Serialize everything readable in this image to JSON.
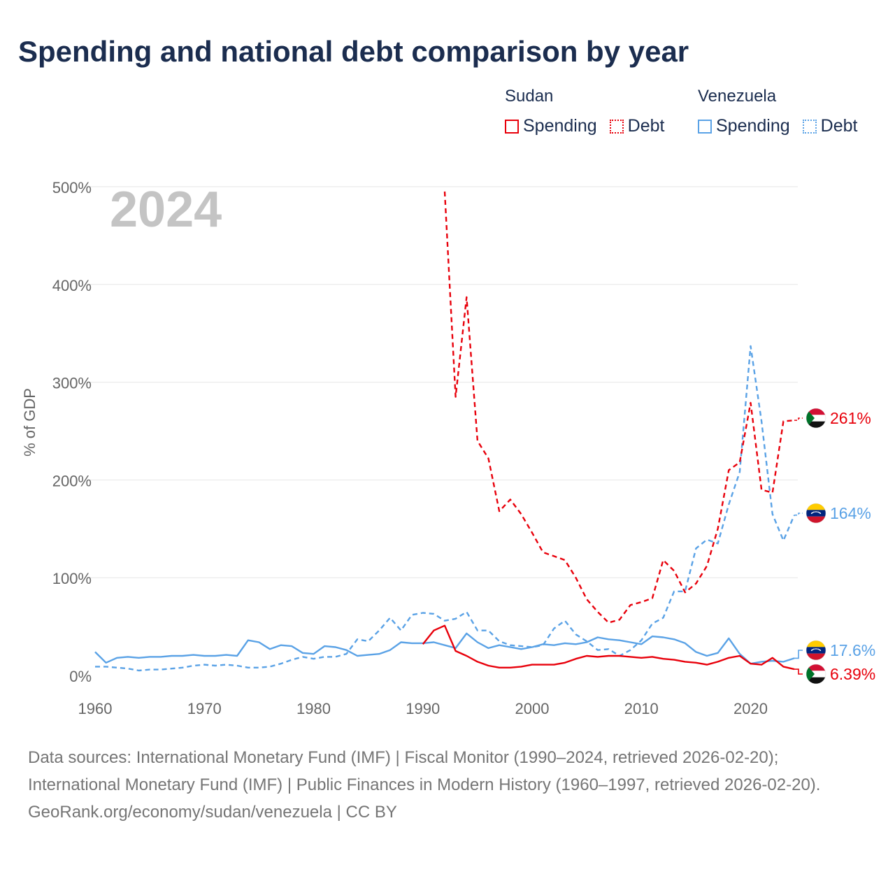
{
  "title": "Spending and national debt comparison by year",
  "legend": {
    "sudan": {
      "label": "Sudan",
      "spending_label": "Spending",
      "debt_label": "Debt",
      "color": "#e8000b"
    },
    "venezuela": {
      "label": "Venezuela",
      "spending_label": "Spending",
      "debt_label": "Debt",
      "color": "#5aa2e6"
    }
  },
  "year_label": "2024",
  "flags": {
    "sudan": "sudan-flag-icon",
    "venezuela": "venezuela-flag-icon"
  },
  "chart_data": {
    "type": "line",
    "title": "Spending and national debt comparison by year",
    "xlabel": "",
    "ylabel": "% of GDP",
    "xlim": [
      1960,
      2024
    ],
    "ylim": [
      0,
      500
    ],
    "x_ticks": [
      1960,
      1970,
      1980,
      1990,
      2000,
      2010,
      2020
    ],
    "y_ticks": [
      0,
      100,
      200,
      300,
      400,
      500
    ],
    "y_tick_labels": [
      "0%",
      "100%",
      "200%",
      "300%",
      "400%",
      "500%"
    ],
    "grid": true,
    "series": [
      {
        "name": "Venezuela Debt",
        "color": "#5aa2e6",
        "style": "dashed",
        "end_label": "164%",
        "points": [
          [
            1960,
            9
          ],
          [
            1961,
            9
          ],
          [
            1962,
            8
          ],
          [
            1963,
            7
          ],
          [
            1964,
            5
          ],
          [
            1965,
            6
          ],
          [
            1966,
            6
          ],
          [
            1967,
            7
          ],
          [
            1968,
            8
          ],
          [
            1969,
            10
          ],
          [
            1970,
            11
          ],
          [
            1971,
            10
          ],
          [
            1972,
            11
          ],
          [
            1973,
            10
          ],
          [
            1974,
            8
          ],
          [
            1975,
            8
          ],
          [
            1976,
            9
          ],
          [
            1977,
            12
          ],
          [
            1978,
            16
          ],
          [
            1979,
            19
          ],
          [
            1980,
            17
          ],
          [
            1981,
            19
          ],
          [
            1982,
            19
          ],
          [
            1983,
            22
          ],
          [
            1984,
            37
          ],
          [
            1985,
            35
          ],
          [
            1986,
            46
          ],
          [
            1987,
            59
          ],
          [
            1988,
            46
          ],
          [
            1989,
            62
          ],
          [
            1990,
            64
          ],
          [
            1991,
            63
          ],
          [
            1992,
            56
          ],
          [
            1993,
            58
          ],
          [
            1994,
            65
          ],
          [
            1995,
            46
          ],
          [
            1996,
            46
          ],
          [
            1997,
            35
          ],
          [
            1998,
            31
          ],
          [
            1999,
            30
          ],
          [
            2000,
            29
          ],
          [
            2001,
            31
          ],
          [
            2002,
            48
          ],
          [
            2003,
            56
          ],
          [
            2004,
            42
          ],
          [
            2005,
            35
          ],
          [
            2006,
            26
          ],
          [
            2007,
            27
          ],
          [
            2008,
            20
          ],
          [
            2009,
            26
          ],
          [
            2010,
            36
          ],
          [
            2011,
            53
          ],
          [
            2012,
            59
          ],
          [
            2013,
            86
          ],
          [
            2014,
            86
          ],
          [
            2015,
            130
          ],
          [
            2016,
            139
          ],
          [
            2017,
            135
          ],
          [
            2018,
            175
          ],
          [
            2019,
            208
          ],
          [
            2020,
            337
          ],
          [
            2021,
            260
          ],
          [
            2022,
            165
          ],
          [
            2023,
            138
          ],
          [
            2024,
            164
          ]
        ]
      },
      {
        "name": "Sudan Debt",
        "color": "#e8000b",
        "style": "dashed",
        "end_label": "261%",
        "points": [
          [
            1992,
            495
          ],
          [
            1993,
            285
          ],
          [
            1994,
            387
          ],
          [
            1995,
            240
          ],
          [
            1996,
            222
          ],
          [
            1997,
            168
          ],
          [
            1998,
            180
          ],
          [
            1999,
            165
          ],
          [
            2000,
            146
          ],
          [
            2001,
            126
          ],
          [
            2002,
            122
          ],
          [
            2003,
            118
          ],
          [
            2004,
            100
          ],
          [
            2005,
            78
          ],
          [
            2006,
            65
          ],
          [
            2007,
            54
          ],
          [
            2008,
            57
          ],
          [
            2009,
            72
          ],
          [
            2010,
            75
          ],
          [
            2011,
            79
          ],
          [
            2012,
            118
          ],
          [
            2013,
            107
          ],
          [
            2014,
            85
          ],
          [
            2015,
            94
          ],
          [
            2016,
            112
          ],
          [
            2017,
            150
          ],
          [
            2018,
            210
          ],
          [
            2019,
            218
          ],
          [
            2020,
            279
          ],
          [
            2021,
            190
          ],
          [
            2022,
            187
          ],
          [
            2023,
            260
          ],
          [
            2024,
            261
          ]
        ]
      },
      {
        "name": "Venezuela Spending",
        "color": "#5aa2e6",
        "style": "solid",
        "end_label": "17.6%",
        "points": [
          [
            1960,
            24
          ],
          [
            1961,
            13
          ],
          [
            1962,
            18
          ],
          [
            1963,
            19
          ],
          [
            1964,
            18
          ],
          [
            1965,
            19
          ],
          [
            1966,
            19
          ],
          [
            1967,
            20
          ],
          [
            1968,
            20
          ],
          [
            1969,
            21
          ],
          [
            1970,
            20
          ],
          [
            1971,
            20
          ],
          [
            1972,
            21
          ],
          [
            1973,
            20
          ],
          [
            1974,
            36
          ],
          [
            1975,
            34
          ],
          [
            1976,
            27
          ],
          [
            1977,
            31
          ],
          [
            1978,
            30
          ],
          [
            1979,
            23
          ],
          [
            1980,
            22
          ],
          [
            1981,
            30
          ],
          [
            1982,
            29
          ],
          [
            1983,
            26
          ],
          [
            1984,
            20
          ],
          [
            1985,
            21
          ],
          [
            1986,
            22
          ],
          [
            1987,
            26
          ],
          [
            1988,
            34
          ],
          [
            1989,
            33
          ],
          [
            1990,
            33
          ],
          [
            1991,
            34
          ],
          [
            1992,
            31
          ],
          [
            1993,
            28
          ],
          [
            1994,
            43
          ],
          [
            1995,
            34
          ],
          [
            1996,
            28
          ],
          [
            1997,
            31
          ],
          [
            1998,
            29
          ],
          [
            1999,
            27
          ],
          [
            2000,
            29
          ],
          [
            2001,
            32
          ],
          [
            2002,
            31
          ],
          [
            2003,
            33
          ],
          [
            2004,
            32
          ],
          [
            2005,
            34
          ],
          [
            2006,
            39
          ],
          [
            2007,
            37
          ],
          [
            2008,
            36
          ],
          [
            2009,
            34
          ],
          [
            2010,
            32
          ],
          [
            2011,
            40
          ],
          [
            2012,
            39
          ],
          [
            2013,
            37
          ],
          [
            2014,
            33
          ],
          [
            2015,
            24
          ],
          [
            2016,
            20
          ],
          [
            2017,
            23
          ],
          [
            2018,
            38
          ],
          [
            2019,
            22
          ],
          [
            2020,
            12
          ],
          [
            2021,
            14
          ],
          [
            2022,
            15
          ],
          [
            2023,
            14
          ],
          [
            2024,
            17.6
          ]
        ]
      },
      {
        "name": "Sudan Spending",
        "color": "#e8000b",
        "style": "solid",
        "end_label": "6.39%",
        "points": [
          [
            1990,
            32
          ],
          [
            1991,
            46
          ],
          [
            1992,
            51
          ],
          [
            1993,
            25
          ],
          [
            1994,
            20
          ],
          [
            1995,
            14
          ],
          [
            1996,
            10
          ],
          [
            1997,
            8
          ],
          [
            1998,
            8
          ],
          [
            1999,
            9
          ],
          [
            2000,
            11
          ],
          [
            2001,
            11
          ],
          [
            2002,
            11
          ],
          [
            2003,
            13
          ],
          [
            2004,
            17
          ],
          [
            2005,
            20
          ],
          [
            2006,
            19
          ],
          [
            2007,
            20
          ],
          [
            2008,
            20
          ],
          [
            2009,
            19
          ],
          [
            2010,
            18
          ],
          [
            2011,
            19
          ],
          [
            2012,
            17
          ],
          [
            2013,
            16
          ],
          [
            2014,
            14
          ],
          [
            2015,
            13
          ],
          [
            2016,
            11
          ],
          [
            2017,
            14
          ],
          [
            2018,
            18
          ],
          [
            2019,
            20
          ],
          [
            2020,
            12
          ],
          [
            2021,
            11
          ],
          [
            2022,
            18
          ],
          [
            2023,
            9
          ],
          [
            2024,
            6.39
          ]
        ]
      }
    ]
  },
  "footer": {
    "sources": "Data sources: International Monetary Fund (IMF) | Fiscal Monitor (1990–2024, retrieved 2026-02-20); International Monetary Fund (IMF) | Public Finances in Modern History (1960–1997, retrieved 2026-02-20).",
    "credit": "GeoRank.org/economy/sudan/venezuela | CC BY"
  }
}
